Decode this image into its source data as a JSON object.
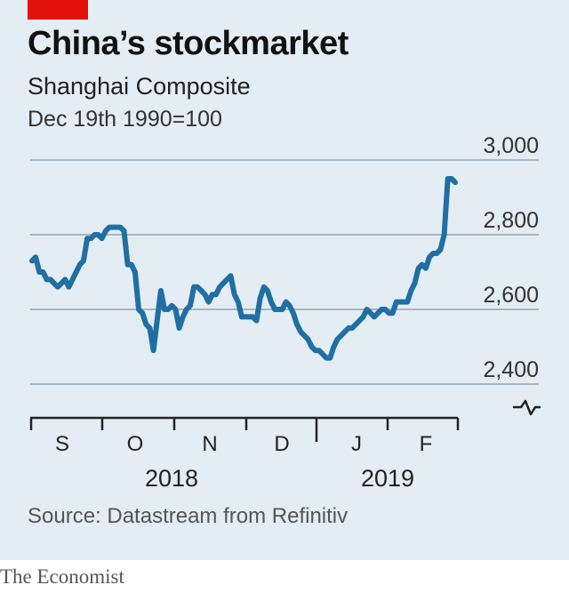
{
  "header": {
    "title": "China’s stockmarket",
    "subtitle": "Shanghai Composite",
    "index_note": "Dec 19th 1990=100"
  },
  "footer": {
    "source": "Source: Datastream from Refinitiv",
    "brand": "The Economist"
  },
  "colors": {
    "accent": "#e3120b",
    "line": "#1f6fa3",
    "background": "#e3edf3",
    "gridline": "#a7b7c1"
  },
  "chart_data": {
    "type": "line",
    "title": "China’s stockmarket",
    "subtitle": "Shanghai Composite",
    "ylabel": "Dec 19th 1990=100",
    "ylim": [
      2400,
      3000
    ],
    "yticks": [
      2400,
      2600,
      2800,
      3000
    ],
    "y_tick_labels": [
      "2,400",
      "2,600",
      "2,800",
      "3,000"
    ],
    "y_axis_break": true,
    "grid": true,
    "x_month_labels": [
      "S",
      "O",
      "N",
      "D",
      "J",
      "F"
    ],
    "x_year_labels": [
      "2018",
      "2019"
    ],
    "series": [
      {
        "values": [
          2730,
          2740,
          2700,
          2700,
          2680,
          2680,
          2670,
          2660,
          2670,
          2680,
          2660,
          2680,
          2700,
          2720,
          2730,
          2790,
          2790,
          2800,
          2800,
          2790,
          2810,
          2820,
          2820,
          2820,
          2820,
          2810,
          2720,
          2720,
          2700,
          2600,
          2590,
          2560,
          2550,
          2490,
          2570,
          2650,
          2600,
          2600,
          2610,
          2600,
          2550,
          2580,
          2600,
          2610,
          2660,
          2660,
          2650,
          2640,
          2620,
          2640,
          2640,
          2660,
          2670,
          2680,
          2690,
          2640,
          2620,
          2580,
          2580,
          2580,
          2580,
          2570,
          2630,
          2660,
          2650,
          2620,
          2600,
          2600,
          2600,
          2620,
          2610,
          2590,
          2560,
          2540,
          2530,
          2520,
          2500,
          2490,
          2490,
          2480,
          2470,
          2470,
          2500,
          2520,
          2530,
          2540,
          2550,
          2550,
          2560,
          2570,
          2580,
          2600,
          2590,
          2580,
          2590,
          2600,
          2600,
          2590,
          2590,
          2620,
          2620,
          2620,
          2620,
          2650,
          2670,
          2710,
          2720,
          2710,
          2740,
          2750,
          2750,
          2760,
          2800,
          2950,
          2950,
          2940
        ]
      }
    ]
  }
}
